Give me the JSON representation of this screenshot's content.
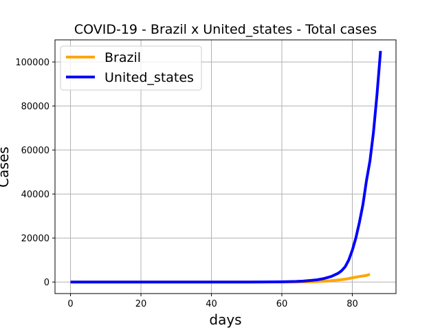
{
  "chart_data": {
    "type": "line",
    "title": "COVID-19 - Brazil x United_states - Total cases",
    "xlabel": "days",
    "ylabel": "Cases",
    "xlim": [
      -4.4,
      92.4
    ],
    "ylim": [
      -5240,
      110040
    ],
    "xticks": [
      0,
      20,
      40,
      60,
      80
    ],
    "yticks": [
      0,
      20000,
      40000,
      60000,
      80000,
      100000
    ],
    "xtick_labels": [
      "0",
      "20",
      "40",
      "60",
      "80"
    ],
    "ytick_labels": [
      "0",
      "20000",
      "40000",
      "60000",
      "80000",
      "100000"
    ],
    "grid": true,
    "legend_position": "top-left",
    "series": [
      {
        "name": "Brazil",
        "color": "#ffa500",
        "x": [
          0,
          60,
          66,
          70,
          72,
          74,
          76,
          78,
          80,
          82,
          84,
          85
        ],
        "y": [
          0,
          0,
          50,
          200,
          350,
          600,
          900,
          1300,
          1900,
          2500,
          3000,
          3500
        ]
      },
      {
        "name": "United_states",
        "color": "#0000ff",
        "x": [
          0,
          50,
          60,
          64,
          66,
          68,
          70,
          72,
          74,
          76,
          77,
          78,
          79,
          80,
          81,
          82,
          83,
          84,
          85,
          86,
          87,
          88
        ],
        "y": [
          0,
          0,
          100,
          250,
          400,
          700,
          1000,
          1600,
          2500,
          4000,
          5200,
          7000,
          10000,
          14500,
          20000,
          27000,
          35000,
          46000,
          55000,
          68000,
          85000,
          105000
        ]
      }
    ]
  }
}
